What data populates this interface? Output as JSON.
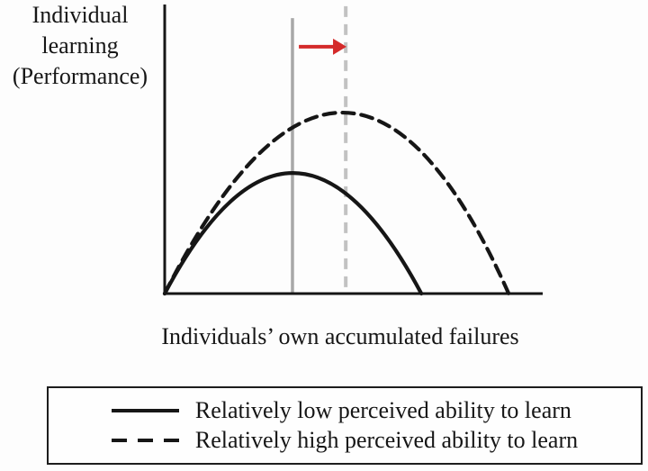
{
  "figure": {
    "ylabel_lines": [
      "Individual",
      "learning",
      "(Performance)"
    ],
    "xlabel": "Individuals’ own accumulated failures"
  },
  "legend": {
    "items": [
      {
        "style": "solid",
        "label": "Relatively low perceived ability to learn"
      },
      {
        "style": "dashed",
        "label": "Relatively high perceived ability to learn"
      }
    ]
  },
  "colors": {
    "curve": "#161616",
    "axis": "#161616",
    "vline_solid": "#a8a8a8",
    "vline_dashed": "#c2c2c2",
    "arrow": "#d42a2a"
  },
  "chart_data": {
    "type": "line",
    "title": "",
    "xlabel": "Individuals’ own accumulated failures",
    "ylabel": "Individual learning (Performance)",
    "x_axis": {
      "min": 0,
      "max": 1,
      "ticks": [],
      "label_visible": true
    },
    "y_axis": {
      "min": 0,
      "max": 1,
      "ticks": [],
      "label_visible": true
    },
    "grid": false,
    "legend_position": "bottom-outside-box",
    "series": [
      {
        "name": "Relatively low perceived ability to learn",
        "style": "solid",
        "shape": "inverted-U parabola",
        "parabola": {
          "root1": 0.0,
          "root2": 0.679,
          "peak_x": 0.339,
          "peak_y": 0.417
        }
      },
      {
        "name": "Relatively high perceived ability to learn",
        "style": "dashed",
        "shape": "inverted-U parabola",
        "parabola": {
          "root1": 0.0,
          "root2": 0.91,
          "peak_x": 0.47,
          "peak_y": 0.626
        }
      }
    ],
    "annotations": {
      "vline_solid": {
        "x": 0.338,
        "top": 0.953,
        "style": "solid",
        "meaning": "peak of low-ability curve"
      },
      "vline_dashed": {
        "x": 0.479,
        "top": 0.994,
        "style": "dashed",
        "meaning": "peak of high-ability curve"
      },
      "arrow": {
        "from_x": 0.355,
        "to_x": 0.481,
        "y": 0.854,
        "direction": "right",
        "meaning": "rightward shift of peak"
      }
    }
  }
}
